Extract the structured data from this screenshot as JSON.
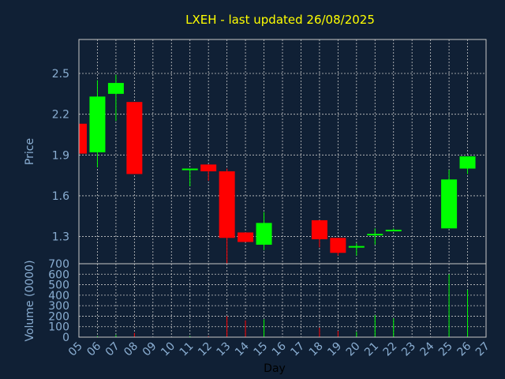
{
  "chart_data": {
    "type": "candlestick",
    "title": "LXEH - last updated 26/08/2025",
    "colors": {
      "background": "#102035",
      "up": "#00ff00",
      "down": "#ff0000",
      "grid": "#c8c8c8",
      "title": "#ffff00",
      "ticks": "#8aaed2"
    },
    "price_panel": {
      "ylabel": "Price",
      "ylim": [
        1.1,
        2.75
      ],
      "yticks": [
        "1.3",
        "1.6",
        "1.9",
        "2.2",
        "2.5"
      ]
    },
    "volume_panel": {
      "ylabel": "Volume (0000)",
      "ylim": [
        0,
        700
      ],
      "yticks": [
        "0",
        "100",
        "200",
        "300",
        "400",
        "500",
        "600",
        "700"
      ]
    },
    "xlabel": "Day",
    "x_ticks": [
      "05",
      "06",
      "07",
      "08",
      "09",
      "10",
      "11",
      "12",
      "13",
      "14",
      "15",
      "16",
      "17",
      "18",
      "19",
      "20",
      "21",
      "22",
      "23",
      "24",
      "25",
      "26",
      "27"
    ],
    "grid": true,
    "candles": [
      {
        "day": "05",
        "open": 2.13,
        "high": 2.13,
        "low": 1.91,
        "close": 1.91,
        "volume": 0
      },
      {
        "day": "06",
        "open": 1.92,
        "high": 2.45,
        "low": 1.81,
        "close": 2.33,
        "volume": 10
      },
      {
        "day": "07",
        "open": 2.35,
        "high": 2.49,
        "low": 2.15,
        "close": 2.43,
        "volume": 20
      },
      {
        "day": "08",
        "open": 2.29,
        "high": 2.29,
        "low": 1.76,
        "close": 1.76,
        "volume": 40
      },
      {
        "day": "11",
        "open": 1.79,
        "high": 1.8,
        "low": 1.67,
        "close": 1.8,
        "volume": 10
      },
      {
        "day": "12",
        "open": 1.83,
        "high": 1.83,
        "low": 1.71,
        "close": 1.78,
        "volume": 10
      },
      {
        "day": "13",
        "open": 1.78,
        "high": 1.8,
        "low": 1.1,
        "close": 1.29,
        "volume": 200
      },
      {
        "day": "14",
        "open": 1.33,
        "high": 1.33,
        "low": 1.26,
        "close": 1.26,
        "volume": 160
      },
      {
        "day": "15",
        "open": 1.24,
        "high": 1.48,
        "low": 1.2,
        "close": 1.4,
        "volume": 170
      },
      {
        "day": "18",
        "open": 1.42,
        "high": 1.42,
        "low": 1.22,
        "close": 1.28,
        "volume": 90
      },
      {
        "day": "19",
        "open": 1.29,
        "high": 1.29,
        "low": 1.16,
        "close": 1.18,
        "volume": 60
      },
      {
        "day": "20",
        "open": 1.22,
        "high": 1.25,
        "low": 1.16,
        "close": 1.23,
        "volume": 50
      },
      {
        "day": "21",
        "open": 1.31,
        "high": 1.36,
        "low": 1.24,
        "close": 1.32,
        "volume": 210
      },
      {
        "day": "22",
        "open": 1.34,
        "high": 1.36,
        "low": 1.34,
        "close": 1.35,
        "volume": 180
      },
      {
        "day": "25",
        "open": 1.36,
        "high": 1.79,
        "low": 1.36,
        "close": 1.72,
        "volume": 600
      },
      {
        "day": "26",
        "open": 1.8,
        "high": 1.89,
        "low": 1.76,
        "close": 1.89,
        "volume": 450
      }
    ]
  }
}
